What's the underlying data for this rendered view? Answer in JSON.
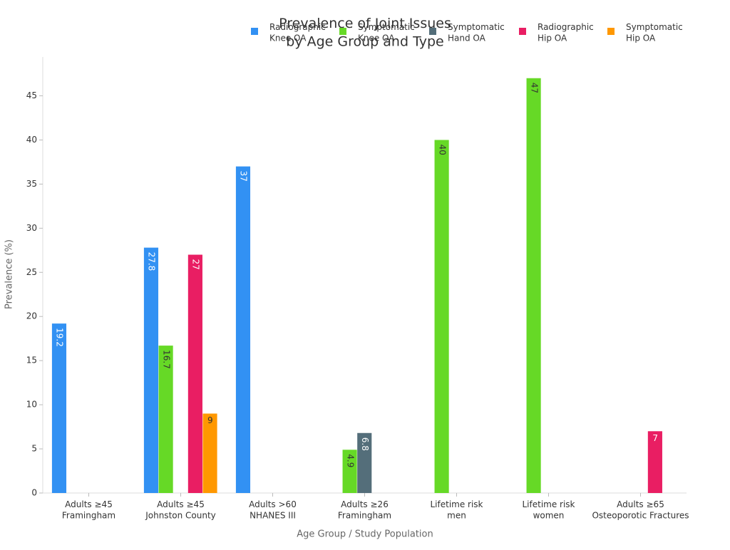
{
  "chart_data": {
    "type": "bar",
    "title": "Prevalence of Joint Issues\nby Age Group and Type",
    "x_label": "Age Group / Study Population",
    "y_label": "Prevalence (%)",
    "categories": [
      "Adults ≥45\nFramingham",
      "Adults ≥45\nJohnston County",
      "Adults >60\nNHANES III",
      "Adults ≥26\nFramingham",
      "Lifetime risk\nmen",
      "Lifetime risk\nwomen",
      "Adults ≥65\nOsteoporotic Fractures"
    ],
    "series": [
      {
        "name": "Radiographic\nKnee OA",
        "color": "#3291f3",
        "values": [
          19.2,
          27.8,
          37,
          null,
          null,
          null,
          null
        ]
      },
      {
        "name": "Symptomatic\nKnee OA",
        "color": "#66d926",
        "values": [
          null,
          16.7,
          null,
          4.9,
          40,
          47,
          null
        ]
      },
      {
        "name": "Symptomatic\nHand OA",
        "color": "#546e7a",
        "values": [
          null,
          null,
          null,
          6.8,
          null,
          null,
          null
        ]
      },
      {
        "name": "Radiographic\nHip OA",
        "color": "#e91e63",
        "values": [
          null,
          27,
          null,
          null,
          null,
          null,
          7
        ]
      },
      {
        "name": "Symptomatic\nHip OA",
        "color": "#ff9800",
        "values": [
          null,
          9,
          null,
          null,
          null,
          null,
          null
        ]
      }
    ],
    "ylim": [
      0,
      49.4
    ],
    "yticks": [
      0,
      5,
      10,
      15,
      20,
      25,
      30,
      35,
      40,
      45
    ],
    "grid": false,
    "legend": "top"
  }
}
